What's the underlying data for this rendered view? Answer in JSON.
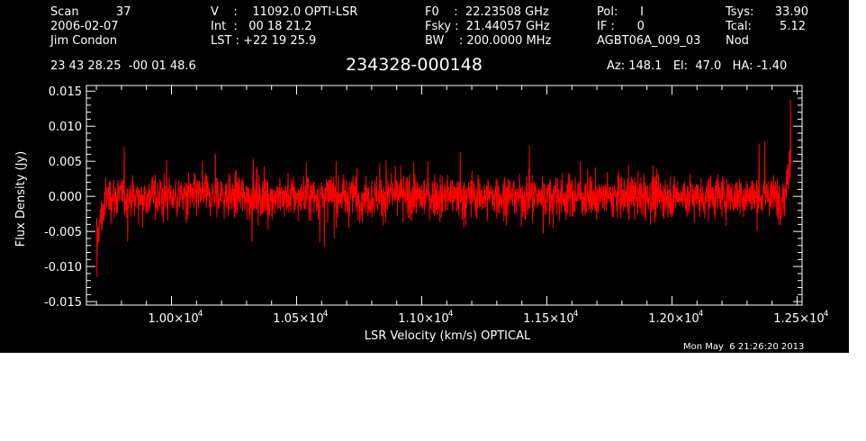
{
  "header": {
    "col1": [
      "Scan          37",
      "2006-02-07",
      "Jim Condon"
    ],
    "col2": [
      "V    :    11092.0 OPTI-LSR",
      "Int  :   00 18 21.2",
      "LST : +22 19 25.9"
    ],
    "col3": [
      "F0    :  22.23508 GHz",
      "Fsky :  21.44057 GHz",
      "BW    : 200.0000 MHz"
    ],
    "col4": [
      "Pol:      I",
      "IF :      0",
      "AGBT06A_009_03"
    ],
    "col5a": [
      "Tsys:",
      "Tcal:",
      "Nod"
    ],
    "col5b": [
      "33.90",
      "5.12",
      ""
    ],
    "coords": "23 43 28.25  -00 01 48.6",
    "source": "234328-000148",
    "azelha": "Az: 148.1   El:  47.0   HA: -1.40"
  },
  "footer": {
    "timestamp": "Mon May  6 21:26:20 2013"
  },
  "colors": {
    "background": "#000000",
    "axes": "#ffffff",
    "series": "#ff0000"
  },
  "chart_data": {
    "type": "line",
    "title": "234328-000148",
    "xlabel": "LSR Velocity (km/s) OPTICAL",
    "ylabel": "Flux Density (Jy)",
    "xlim": [
      9660,
      12520
    ],
    "ylim": [
      -0.0155,
      0.0158
    ],
    "xticks": [
      {
        "value": 10000,
        "mant": "1.00",
        "exp": "4"
      },
      {
        "value": 10500,
        "mant": "1.05",
        "exp": "4"
      },
      {
        "value": 11000,
        "mant": "1.10",
        "exp": "4"
      },
      {
        "value": 11500,
        "mant": "1.15",
        "exp": "4"
      },
      {
        "value": 12000,
        "mant": "1.20",
        "exp": "4"
      },
      {
        "value": 12500,
        "mant": "1.25",
        "exp": "4"
      }
    ],
    "yticks": [
      {
        "value": 0.015,
        "label": "0.015"
      },
      {
        "value": 0.01,
        "label": "0.010"
      },
      {
        "value": 0.005,
        "label": "0.005"
      },
      {
        "value": 0.0,
        "label": "0.000"
      },
      {
        "value": -0.005,
        "label": "-0.005"
      },
      {
        "value": -0.01,
        "label": "-0.010"
      },
      {
        "value": -0.015,
        "label": "-0.015"
      }
    ],
    "grid": false,
    "series": [
      {
        "x_start": 9700,
        "x_end": 12475,
        "noise_sigma": 0.0028,
        "edge_features": [
          {
            "x": 9700,
            "y": -0.0115
          },
          {
            "x": 9715,
            "y": -0.008
          },
          {
            "x": 12455,
            "y": 0.006
          },
          {
            "x": 12475,
            "y": 0.0138
          }
        ]
      }
    ]
  }
}
